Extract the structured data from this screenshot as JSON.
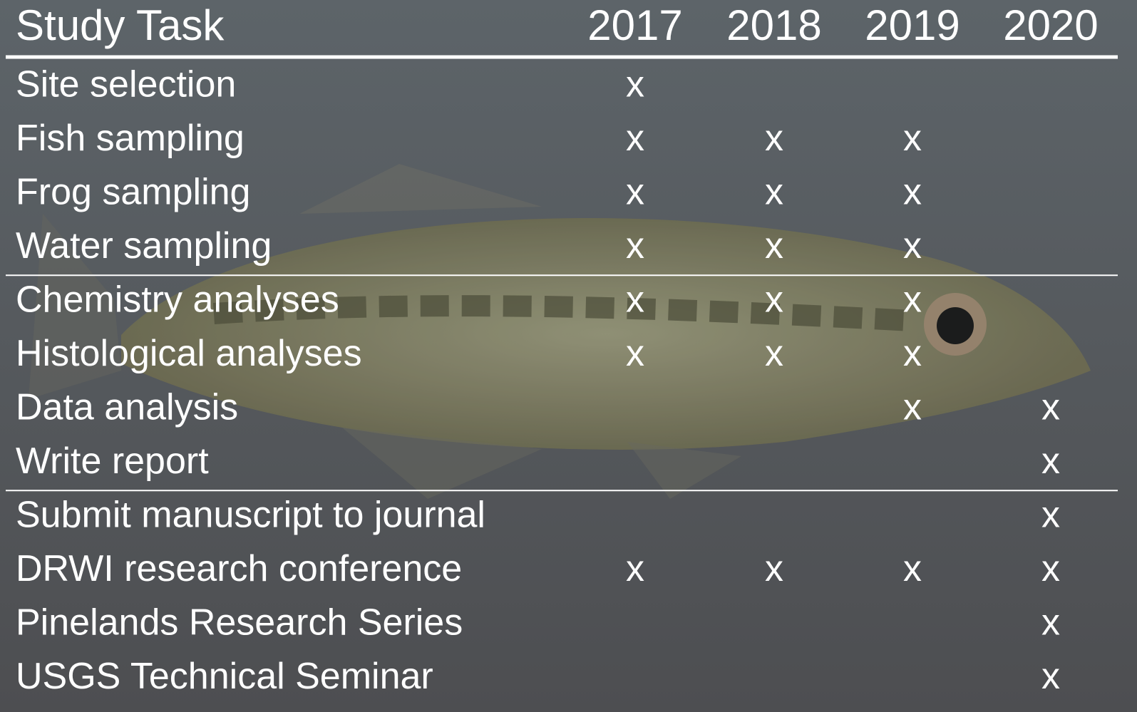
{
  "table": {
    "header": [
      "Study Task",
      "2017",
      "2018",
      "2019",
      "2020"
    ],
    "sections": [
      [
        [
          "Site selection",
          "x",
          null,
          null,
          null
        ],
        [
          "Fish sampling",
          "x",
          "x",
          "x",
          null
        ],
        [
          "Frog sampling",
          "x",
          "x",
          "x",
          null
        ],
        [
          "Water sampling",
          "x",
          "x",
          "x",
          null
        ]
      ],
      [
        [
          "Chemistry analyses",
          "x",
          "x",
          "x",
          null
        ],
        [
          "Histological analyses",
          "x",
          "x",
          "x",
          null
        ],
        [
          "Data analysis",
          null,
          null,
          "x",
          "x"
        ],
        [
          "Write report",
          null,
          null,
          null,
          "x"
        ]
      ],
      [
        [
          "Submit manuscript to journal",
          null,
          null,
          null,
          "x"
        ],
        [
          "DRWI research conference",
          "x",
          "x",
          "x",
          "x"
        ],
        [
          "Pinelands Research Series",
          null,
          null,
          null,
          "x"
        ],
        [
          "USGS Technical Seminar",
          null,
          null,
          null,
          "x"
        ]
      ]
    ]
  }
}
